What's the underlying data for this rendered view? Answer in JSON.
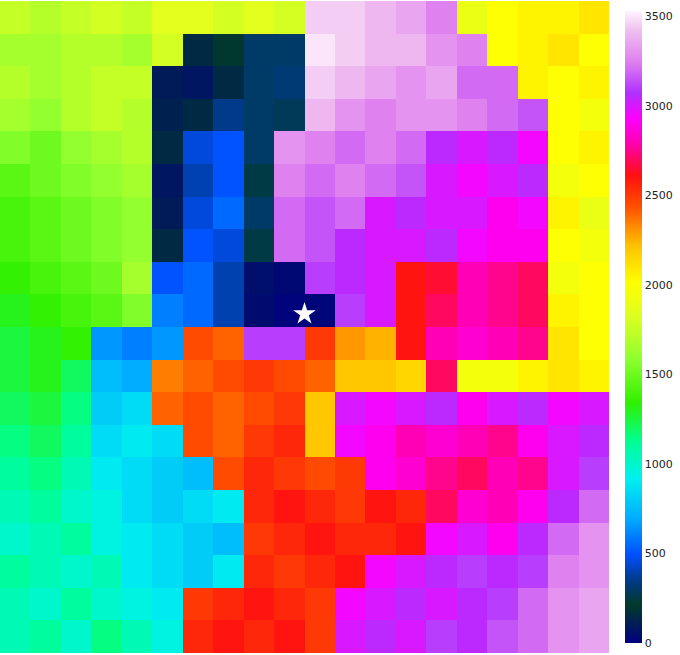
{
  "chart_data": {
    "type": "heatmap",
    "tick_labels": false,
    "xlim": [
      -0.5,
      19.5
    ],
    "ylim": [
      19.5,
      -0.5
    ],
    "zlim": [
      0,
      3530
    ],
    "colorbar_ticks": [
      0,
      500,
      1000,
      1500,
      2000,
      2500,
      3000,
      3500
    ],
    "start": {
      "x": 9.5,
      "y": 9.1,
      "marker": "star",
      "color": "#ffffff"
    },
    "cells": [
      [
        1750,
        1700,
        1750,
        1800,
        1750,
        1850,
        1850,
        1800,
        1850,
        1800,
        3450,
        3450,
        3400,
        3350,
        3250,
        1900,
        2000,
        2050,
        2050,
        2100
      ],
      [
        1650,
        1650,
        1700,
        1700,
        1650,
        1800,
        150,
        200,
        300,
        300,
        3500,
        3450,
        3400,
        3400,
        3300,
        3250,
        2000,
        2050,
        2100,
        2000
      ],
      [
        1700,
        1650,
        1700,
        1750,
        1750,
        100,
        80,
        150,
        300,
        320,
        3450,
        3400,
        3350,
        3300,
        3350,
        3200,
        3200,
        2050,
        2000,
        2050
      ],
      [
        1650,
        1600,
        1700,
        1750,
        1700,
        120,
        150,
        350,
        300,
        280,
        3400,
        3300,
        3250,
        3300,
        3300,
        3250,
        3200,
        3150,
        2000,
        1950
      ],
      [
        1550,
        1500,
        1600,
        1650,
        1700,
        150,
        450,
        500,
        300,
        3300,
        3250,
        3200,
        3250,
        3200,
        3050,
        3000,
        3050,
        2950,
        2000,
        2050
      ],
      [
        1450,
        1500,
        1550,
        1600,
        1650,
        80,
        400,
        500,
        250,
        3250,
        3200,
        3250,
        3200,
        3150,
        3000,
        2950,
        3000,
        3050,
        1950,
        2000
      ],
      [
        1400,
        1450,
        1500,
        1550,
        1600,
        100,
        450,
        550,
        300,
        3200,
        3150,
        3200,
        3000,
        3050,
        3000,
        3000,
        2900,
        2950,
        2050,
        1900
      ],
      [
        1400,
        1450,
        1500,
        1550,
        1600,
        150,
        500,
        450,
        250,
        3200,
        3150,
        3050,
        3000,
        3000,
        3050,
        2950,
        2900,
        2900,
        2000,
        1950
      ],
      [
        1350,
        1400,
        1450,
        1500,
        1650,
        500,
        550,
        400,
        50,
        30,
        3100,
        3050,
        3000,
        2600,
        2650,
        2800,
        2750,
        2700,
        1950,
        2000
      ],
      [
        1300,
        1350,
        1400,
        1450,
        1550,
        600,
        550,
        400,
        40,
        10,
        20,
        3100,
        3000,
        2600,
        2700,
        2800,
        2750,
        2700,
        2050,
        2000
      ],
      [
        1250,
        1300,
        1350,
        650,
        600,
        650,
        2450,
        2400,
        3100,
        3100,
        2500,
        2300,
        2250,
        2600,
        2800,
        2850,
        2800,
        2750,
        2100,
        2000
      ],
      [
        1250,
        1300,
        1200,
        750,
        700,
        2350,
        2400,
        2450,
        2500,
        2450,
        2400,
        2200,
        2200,
        2150,
        2700,
        1950,
        1950,
        2050,
        2100,
        2050
      ],
      [
        1200,
        1250,
        1150,
        800,
        850,
        2400,
        2450,
        2400,
        2450,
        2500,
        2200,
        3000,
        2950,
        3000,
        3050,
        2900,
        3000,
        3050,
        2950,
        3000
      ],
      [
        1150,
        1200,
        1100,
        850,
        900,
        850,
        2450,
        2400,
        2500,
        2550,
        2200,
        2950,
        2900,
        2800,
        2850,
        2800,
        2750,
        2900,
        3000,
        3050
      ],
      [
        1100,
        1150,
        1050,
        900,
        850,
        800,
        750,
        2450,
        2550,
        2500,
        2450,
        2500,
        2900,
        2850,
        2750,
        2700,
        2800,
        2750,
        3000,
        3100
      ],
      [
        1050,
        1100,
        1000,
        950,
        850,
        800,
        850,
        900,
        2550,
        2600,
        2550,
        2500,
        2600,
        2550,
        2700,
        2850,
        2800,
        2900,
        3050,
        3200
      ],
      [
        1000,
        1050,
        1100,
        950,
        900,
        850,
        800,
        750,
        2500,
        2550,
        2600,
        2550,
        2550,
        2600,
        2950,
        3000,
        2900,
        3050,
        3200,
        3300
      ],
      [
        1100,
        1050,
        1000,
        1050,
        900,
        850,
        800,
        900,
        2550,
        2500,
        2550,
        2600,
        2950,
        3000,
        3050,
        3100,
        3050,
        3100,
        3250,
        3300
      ],
      [
        1050,
        1000,
        1100,
        1000,
        950,
        900,
        2500,
        2550,
        2600,
        2550,
        2500,
        2950,
        3000,
        3050,
        3000,
        3050,
        3100,
        3200,
        3300,
        3350
      ],
      [
        1050,
        1100,
        1000,
        1150,
        1050,
        950,
        2550,
        2600,
        2550,
        2600,
        2500,
        3000,
        3050,
        3000,
        3100,
        3050,
        3150,
        3200,
        3300,
        3350
      ]
    ]
  }
}
